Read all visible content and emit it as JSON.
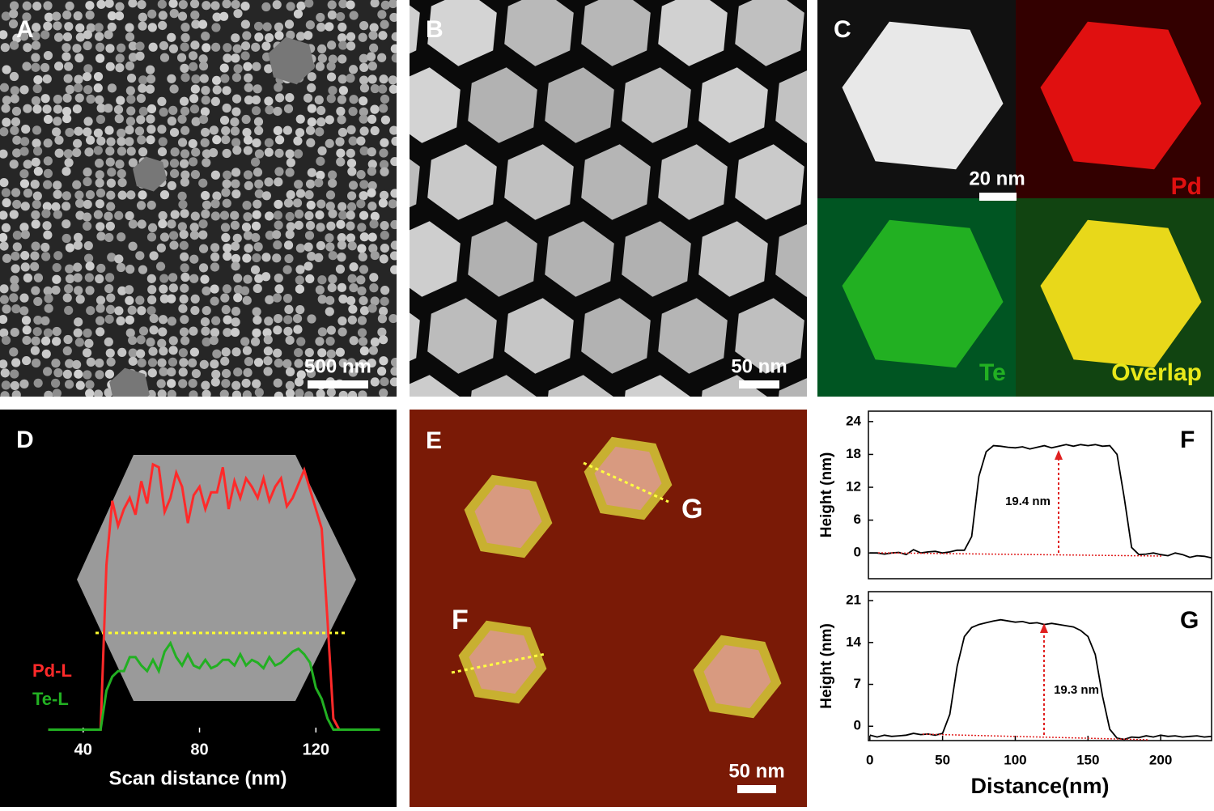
{
  "panels": {
    "A": {
      "label": "A",
      "scale_bar": "500 nm"
    },
    "B": {
      "label": "B",
      "scale_bar": "50 nm"
    },
    "C": {
      "label": "C",
      "scale_bar": "20 nm",
      "maps": [
        "Pd",
        "Te",
        "Overlap"
      ]
    },
    "E": {
      "label": "E",
      "scale_bar": "50 nm",
      "markers": [
        "F",
        "G"
      ]
    }
  },
  "chart_data": [
    {
      "type": "line",
      "label": "D",
      "xlabel": "Scan distance (nm)",
      "x": [
        28,
        30,
        32,
        34,
        36,
        38,
        40,
        42,
        44,
        46,
        48,
        50,
        52,
        54,
        56,
        58,
        60,
        62,
        64,
        66,
        68,
        70,
        72,
        74,
        76,
        78,
        80,
        82,
        84,
        86,
        88,
        90,
        92,
        94,
        96,
        98,
        100,
        102,
        104,
        106,
        108,
        110,
        112,
        114,
        116,
        118,
        120,
        122,
        124,
        126,
        128,
        130,
        132,
        134,
        136,
        138,
        140,
        142
      ],
      "xlim": [
        27,
        143
      ],
      "xticks": [
        40,
        80,
        120
      ],
      "ylim": [
        0,
        100
      ],
      "series": [
        {
          "name": "Pd-L",
          "color": "#ff2a2a",
          "values": [
            1,
            1,
            1,
            1,
            1,
            1,
            1,
            1,
            1,
            1,
            60,
            83,
            74,
            80,
            84,
            78,
            90,
            82,
            96,
            95,
            79,
            84,
            93,
            88,
            75,
            85,
            88,
            80,
            86,
            86,
            95,
            80,
            90,
            84,
            91,
            88,
            84,
            91,
            83,
            88,
            91,
            81,
            84,
            89,
            94,
            87,
            80,
            73,
            40,
            5,
            1,
            1,
            1,
            1,
            1,
            1,
            1,
            1
          ]
        },
        {
          "name": "Te-L",
          "color": "#22b022",
          "values": [
            1,
            1,
            1,
            1,
            1,
            1,
            1,
            1,
            1,
            1,
            15,
            20,
            22,
            22,
            27,
            27,
            24,
            22,
            26,
            22,
            29,
            32,
            27,
            24,
            28,
            24,
            23,
            26,
            23,
            24,
            26,
            26,
            24,
            28,
            24,
            26,
            25,
            23,
            27,
            24,
            25,
            27,
            29,
            30,
            28,
            25,
            16,
            12,
            5,
            1,
            1,
            1,
            1,
            1,
            1,
            1,
            1,
            1
          ]
        }
      ]
    },
    {
      "type": "line",
      "label": "F",
      "ylabel": "Height (nm)",
      "annotation": "19.4 nm",
      "x": [
        0,
        5,
        10,
        15,
        20,
        25,
        30,
        35,
        40,
        45,
        50,
        55,
        60,
        65,
        70,
        75,
        80,
        85,
        90,
        95,
        100,
        105,
        110,
        115,
        120,
        125,
        130,
        135,
        140,
        145,
        150,
        155,
        160,
        165,
        170,
        175,
        180,
        185,
        190,
        195,
        200,
        205,
        210,
        215,
        220,
        225,
        230,
        235
      ],
      "xlim": [
        -1,
        235
      ],
      "ylim": [
        -4.7,
        25.9
      ],
      "yticks": [
        0,
        6,
        12,
        18,
        24
      ],
      "series": [
        {
          "name": "F",
          "color": "#000000",
          "values": [
            0,
            0,
            -0.2,
            0,
            0.1,
            -0.3,
            0.6,
            0,
            0.2,
            0.3,
            0,
            0.2,
            0.5,
            0.5,
            3,
            14,
            18.5,
            19.6,
            19.5,
            19.3,
            19.2,
            19.4,
            19,
            19.3,
            19.6,
            19.2,
            19.5,
            19.8,
            19.5,
            19.8,
            19.6,
            19.8,
            19.5,
            19.6,
            18,
            10,
            1,
            -0.3,
            -0.2,
            0,
            -0.3,
            -0.5,
            0,
            -0.3,
            -0.8,
            -0.5,
            -0.6,
            -0.9
          ]
        }
      ]
    },
    {
      "type": "line",
      "label": "G",
      "ylabel": "Height (nm)",
      "xlabel": "Distance(nm)",
      "annotation": "19.3 nm",
      "x": [
        0,
        5,
        10,
        15,
        20,
        25,
        30,
        35,
        40,
        45,
        50,
        55,
        60,
        65,
        70,
        75,
        80,
        85,
        90,
        95,
        100,
        105,
        110,
        115,
        120,
        125,
        130,
        135,
        140,
        145,
        150,
        155,
        160,
        165,
        170,
        175,
        180,
        185,
        190,
        195,
        200,
        205,
        210,
        215,
        220,
        225,
        230,
        235
      ],
      "xlim": [
        -1,
        235
      ],
      "xticks": [
        0,
        50,
        100,
        150,
        200
      ],
      "ylim": [
        -2.4,
        22.5
      ],
      "yticks": [
        0,
        7,
        14,
        21
      ],
      "series": [
        {
          "name": "G",
          "color": "#000000",
          "values": [
            -1.5,
            -1.8,
            -1.5,
            -1.7,
            -1.6,
            -1.5,
            -1.2,
            -1.4,
            -1.3,
            -1.5,
            -1.2,
            2,
            10,
            15,
            16.5,
            17,
            17.3,
            17.6,
            17.8,
            17.6,
            17.4,
            17.5,
            17.2,
            17.3,
            17,
            17.2,
            17,
            16.8,
            16.6,
            16,
            15,
            12,
            5,
            -0.5,
            -2,
            -2.2,
            -1.8,
            -1.9,
            -1.6,
            -1.8,
            -1.5,
            -1.7,
            -1.6,
            -1.8,
            -1.7,
            -1.6,
            -1.8,
            -1.7
          ]
        }
      ]
    }
  ]
}
